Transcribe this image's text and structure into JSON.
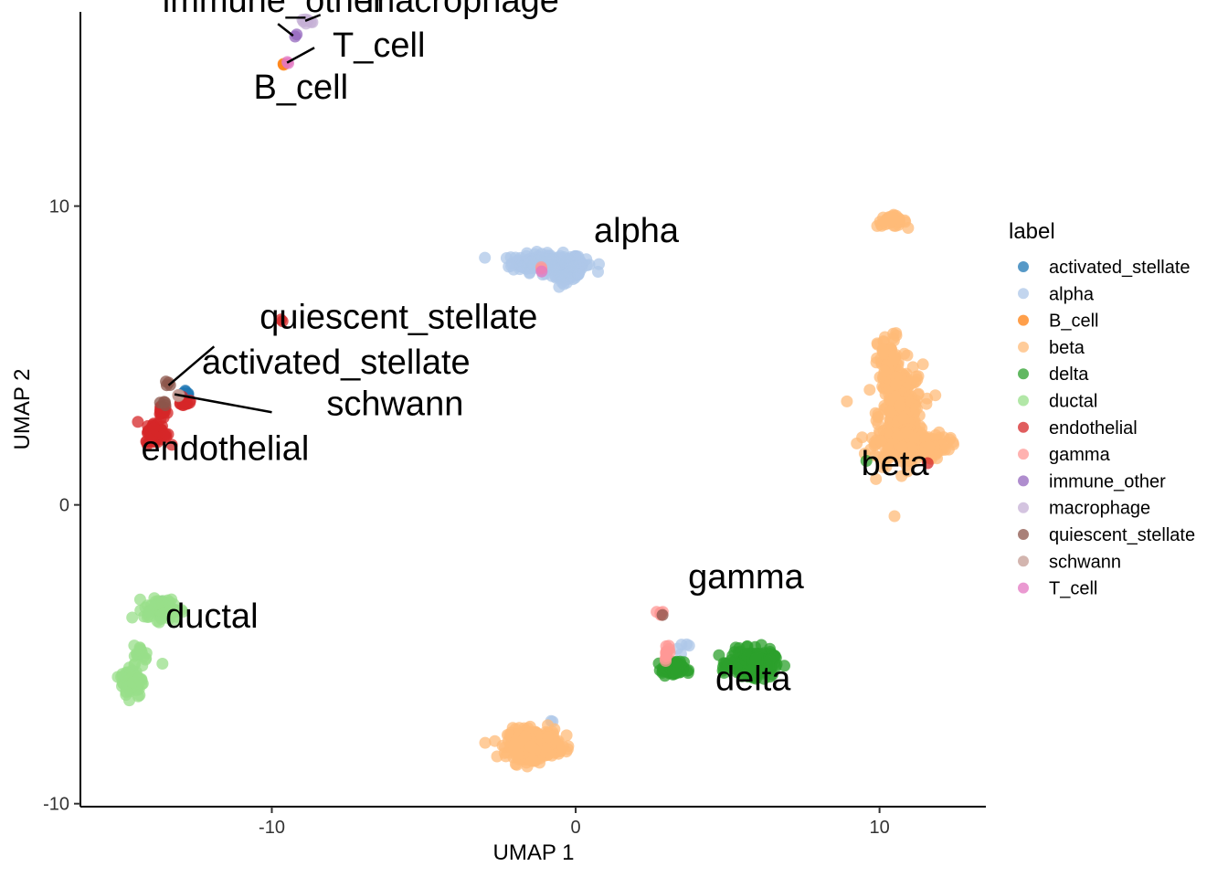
{
  "chart_data": {
    "type": "scatter",
    "xlabel": "UMAP 1",
    "ylabel": "UMAP 2",
    "xlim": [
      -16.3,
      13.5
    ],
    "ylim": [
      -10.1,
      16.5
    ],
    "xticks": [
      -10,
      0,
      10
    ],
    "yticks": [
      -10,
      0,
      10
    ],
    "grid": false,
    "legend": {
      "title": "label",
      "position": "right"
    },
    "series": [
      {
        "name": "activated_stellate",
        "color": "#1F77B4",
        "clusters": [
          [
            -12.8,
            3.7,
            0.2,
            0.15,
            8
          ],
          [
            -13.6,
            -3.2,
            0.05,
            0.05,
            1
          ]
        ]
      },
      {
        "name": "alpha",
        "color": "#AEC7E8",
        "clusters": [
          [
            -0.9,
            8.1,
            1.0,
            0.25,
            220
          ],
          [
            -0.3,
            7.7,
            0.4,
            0.2,
            60
          ],
          [
            3.7,
            -4.8,
            0.4,
            0.15,
            5
          ],
          [
            -0.8,
            -7.2,
            0.1,
            0.05,
            2
          ]
        ]
      },
      {
        "name": "B_cell",
        "color": "#FF7F0E",
        "clusters": [
          [
            -9.6,
            14.7,
            0.05,
            0.05,
            2
          ]
        ]
      },
      {
        "name": "beta",
        "color": "#FFBB78",
        "clusters": [
          [
            10.4,
            9.5,
            0.4,
            0.15,
            40
          ],
          [
            10.7,
            3.0,
            0.6,
            1.4,
            300
          ],
          [
            11.0,
            2.0,
            1.0,
            0.4,
            200
          ],
          [
            10.3,
            4.7,
            0.3,
            0.8,
            80
          ],
          [
            -1.4,
            -8.0,
            0.7,
            0.4,
            320
          ],
          [
            8.9,
            3.5,
            0.05,
            0.05,
            1
          ]
        ]
      },
      {
        "name": "delta",
        "color": "#2CA02C",
        "clusters": [
          [
            5.8,
            -5.3,
            0.6,
            0.35,
            260
          ],
          [
            3.2,
            -5.5,
            0.3,
            0.2,
            80
          ],
          [
            9.6,
            1.5,
            0.05,
            0.05,
            1
          ]
        ]
      },
      {
        "name": "ductal",
        "color": "#98DF8A",
        "clusters": [
          [
            -13.6,
            -3.5,
            0.5,
            0.3,
            80
          ],
          [
            -14.6,
            -5.9,
            0.3,
            0.45,
            90
          ],
          [
            -14.3,
            -5.0,
            0.2,
            0.25,
            20
          ],
          [
            -13.6,
            -5.3,
            0.05,
            0.05,
            1
          ]
        ]
      },
      {
        "name": "endothelial",
        "color": "#D62728",
        "clusters": [
          [
            -13.8,
            2.4,
            0.3,
            0.3,
            70
          ],
          [
            -13.6,
            3.2,
            0.1,
            0.25,
            20
          ],
          [
            -12.9,
            3.4,
            0.15,
            0.15,
            12
          ],
          [
            -9.7,
            6.2,
            0.05,
            0.05,
            2
          ],
          [
            11.6,
            1.4,
            0.05,
            0.05,
            1
          ]
        ]
      },
      {
        "name": "gamma",
        "color": "#FF9896",
        "clusters": [
          [
            2.8,
            -3.6,
            0.1,
            0.08,
            6
          ],
          [
            3.0,
            -4.9,
            0.1,
            0.2,
            12
          ],
          [
            -1.1,
            7.9,
            0.05,
            0.05,
            2
          ]
        ]
      },
      {
        "name": "immune_other",
        "color": "#9467BD",
        "clusters": [
          [
            -9.2,
            15.7,
            0.05,
            0.05,
            2
          ]
        ]
      },
      {
        "name": "macrophage",
        "color": "#C5B0D5",
        "clusters": [
          [
            -8.9,
            16.2,
            0.25,
            0.1,
            8
          ]
        ]
      },
      {
        "name": "quiescent_stellate",
        "color": "#8C564B",
        "clusters": [
          [
            -13.4,
            4.0,
            0.1,
            0.1,
            4
          ],
          [
            -13.6,
            3.4,
            0.1,
            0.1,
            4
          ],
          [
            2.9,
            -3.7,
            0.05,
            0.05,
            1
          ]
        ]
      },
      {
        "name": "schwann",
        "color": "#C49C94",
        "clusters": [
          [
            -13.1,
            3.7,
            0.08,
            0.08,
            3
          ]
        ]
      },
      {
        "name": "T_cell",
        "color": "#E377C2",
        "clusters": [
          [
            -9.5,
            14.8,
            0.05,
            0.05,
            2
          ],
          [
            -1.1,
            7.8,
            0.05,
            0.05,
            1
          ]
        ]
      }
    ],
    "annotations": [
      {
        "text": "immune_other",
        "x": -13.6,
        "y": 16.5,
        "point": [
          -9.3,
          15.7
        ],
        "line_from": [
          -9.8,
          16.1
        ]
      },
      {
        "text": "macrophage",
        "x": -6.9,
        "y": 16.5,
        "point": [
          -8.9,
          16.2
        ],
        "line_from": [
          -8.4,
          16.4
        ]
      },
      {
        "text": "T_cell",
        "x": -8.0,
        "y": 15.0,
        "point": [
          -9.5,
          14.8
        ],
        "line_from": [
          -8.6,
          15.3
        ]
      },
      {
        "text": "B_cell",
        "x": -10.6,
        "y": 13.6,
        "point": null,
        "line_from": null
      },
      {
        "text": "alpha",
        "x": 0.6,
        "y": 8.8,
        "point": null,
        "line_from": null
      },
      {
        "text": "quiescent_stellate",
        "x": -10.4,
        "y": 5.9,
        "point": [
          -13.4,
          4.0
        ],
        "line_from": [
          -11.9,
          5.3
        ]
      },
      {
        "text": "activated_stellate",
        "x": -12.3,
        "y": 4.4,
        "point": [
          -12.9,
          3.7
        ],
        "line_from": null
      },
      {
        "text": "schwann",
        "x": -8.2,
        "y": 3.0,
        "point": [
          -13.2,
          3.7
        ],
        "line_from": [
          -10.0,
          3.1
        ]
      },
      {
        "text": "endothelial",
        "x": -14.3,
        "y": 1.5,
        "point": null,
        "line_from": null
      },
      {
        "text": "beta",
        "x": 9.4,
        "y": 1.0,
        "point": null,
        "line_from": null
      },
      {
        "text": "gamma",
        "x": 3.7,
        "y": -2.8,
        "point": null,
        "line_from": null
      },
      {
        "text": "ductal",
        "x": -13.5,
        "y": -4.1,
        "point": null,
        "line_from": null
      },
      {
        "text": "delta",
        "x": 4.6,
        "y": -6.2,
        "point": null,
        "line_from": null
      }
    ]
  }
}
